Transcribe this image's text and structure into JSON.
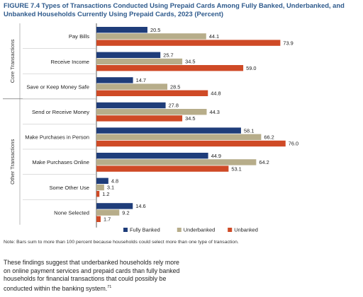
{
  "figure": {
    "title": "FIGURE 7.4 Types of Transactions Conducted Using Prepaid Cards Among Fully Banked, Underbanked, and Unbanked Households Currently Using Prepaid Cards, 2023 (Percent)"
  },
  "note": "Note: Bars sum to more than 100 percent because households could select more than one type of transaction.",
  "body": {
    "text": "These findings suggest that underbanked households rely more on online payment services and prepaid cards than fully banked households for financial transactions that could possibly be conducted within the banking system.",
    "footnote": "71"
  },
  "chart_data": {
    "type": "bar",
    "orientation": "horizontal",
    "title": "",
    "xlabel": "",
    "ylabel": "",
    "xlim": [
      0,
      80
    ],
    "grid": false,
    "legend_position": "bottom",
    "groups": [
      {
        "name": "Core Transactions",
        "categories": [
          "Pay Bills",
          "Receive Income",
          "Save or Keep Money Safe"
        ]
      },
      {
        "name": "Other Transactions",
        "categories": [
          "Send or Receive Money",
          "Make Purchases in Person",
          "Make Purchases Online",
          "Some Other Use",
          "None Selected"
        ]
      }
    ],
    "categories": [
      "Pay Bills",
      "Receive Income",
      "Save or Keep Money Safe",
      "Send or Receive Money",
      "Make Purchases in Person",
      "Make Purchases Online",
      "Some Other Use",
      "None Selected"
    ],
    "series": [
      {
        "name": "Fully Banked",
        "color": "#1f3d7a",
        "values": [
          20.5,
          25.7,
          14.7,
          27.8,
          58.1,
          44.9,
          4.8,
          14.6
        ]
      },
      {
        "name": "Underbanked",
        "color": "#b7ad8a",
        "values": [
          44.1,
          34.5,
          28.5,
          44.3,
          66.2,
          64.2,
          3.1,
          9.2
        ]
      },
      {
        "name": "Unbanked",
        "color": "#cf4a26",
        "values": [
          73.9,
          59.0,
          44.8,
          34.5,
          76.0,
          53.1,
          1.2,
          1.7
        ]
      }
    ],
    "value_labels": [
      [
        "20.5",
        "44.1",
        "73.9"
      ],
      [
        "25.7",
        "34.5",
        "59.0"
      ],
      [
        "14.7",
        "28.5",
        "44.8"
      ],
      [
        "27.8",
        "44.3",
        "34.5"
      ],
      [
        "58.1",
        "66.2",
        "76.0"
      ],
      [
        "44.9",
        "64.2",
        "53.1"
      ],
      [
        "4.8",
        "3.1",
        "1.2"
      ],
      [
        "14.6",
        "9.2",
        "1.7"
      ]
    ]
  }
}
